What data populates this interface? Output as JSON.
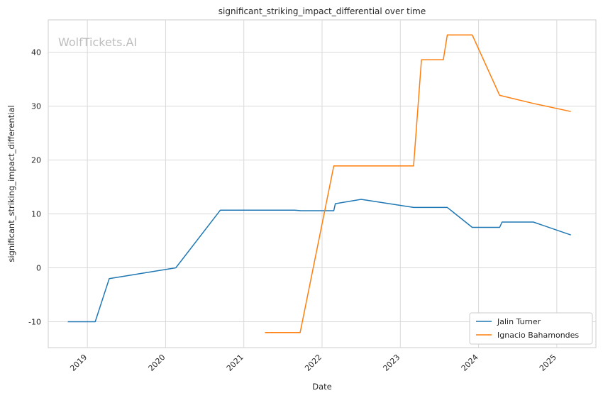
{
  "watermark": "WolfTickets.AI",
  "chart_data": {
    "type": "line",
    "title": "significant_striking_impact_differential over time",
    "xlabel": "Date",
    "ylabel": "significant_striking_impact_differential",
    "x_tick_labels": [
      "2019",
      "2020",
      "2021",
      "2022",
      "2023",
      "2024",
      "2025"
    ],
    "y_tick_labels": [
      "-10",
      "0",
      "10",
      "20",
      "30",
      "40"
    ],
    "x_ticks": [
      2019,
      2020,
      2021,
      2022,
      2023,
      2024,
      2025
    ],
    "y_ticks": [
      -10,
      0,
      10,
      20,
      30,
      40
    ],
    "xlim": [
      2018.5,
      2025.5
    ],
    "ylim": [
      -14.8,
      46.0
    ],
    "grid": true,
    "legend_position": "lower-right",
    "series": [
      {
        "name": "Jalin Turner",
        "color": "#1f77b4",
        "points": [
          [
            2018.75,
            -10.0
          ],
          [
            2019.1,
            -10.0
          ],
          [
            2019.28,
            -2.0
          ],
          [
            2020.13,
            0.0
          ],
          [
            2020.7,
            10.7
          ],
          [
            2021.65,
            10.7
          ],
          [
            2021.73,
            10.6
          ],
          [
            2022.15,
            10.6
          ],
          [
            2022.17,
            11.9
          ],
          [
            2022.5,
            12.7
          ],
          [
            2023.17,
            11.2
          ],
          [
            2023.6,
            11.2
          ],
          [
            2023.92,
            7.5
          ],
          [
            2024.27,
            7.5
          ],
          [
            2024.3,
            8.5
          ],
          [
            2024.7,
            8.5
          ],
          [
            2025.18,
            6.1
          ]
        ]
      },
      {
        "name": "Ignacio Bahamondes",
        "color": "#ff7f0e",
        "points": [
          [
            2021.27,
            -12.0
          ],
          [
            2021.72,
            -12.0
          ],
          [
            2022.15,
            18.9
          ],
          [
            2023.17,
            18.9
          ],
          [
            2023.27,
            38.6
          ],
          [
            2023.55,
            38.6
          ],
          [
            2023.6,
            43.2
          ],
          [
            2023.92,
            43.2
          ],
          [
            2024.27,
            32.0
          ],
          [
            2024.7,
            30.5
          ],
          [
            2025.18,
            29.0
          ]
        ]
      }
    ]
  }
}
